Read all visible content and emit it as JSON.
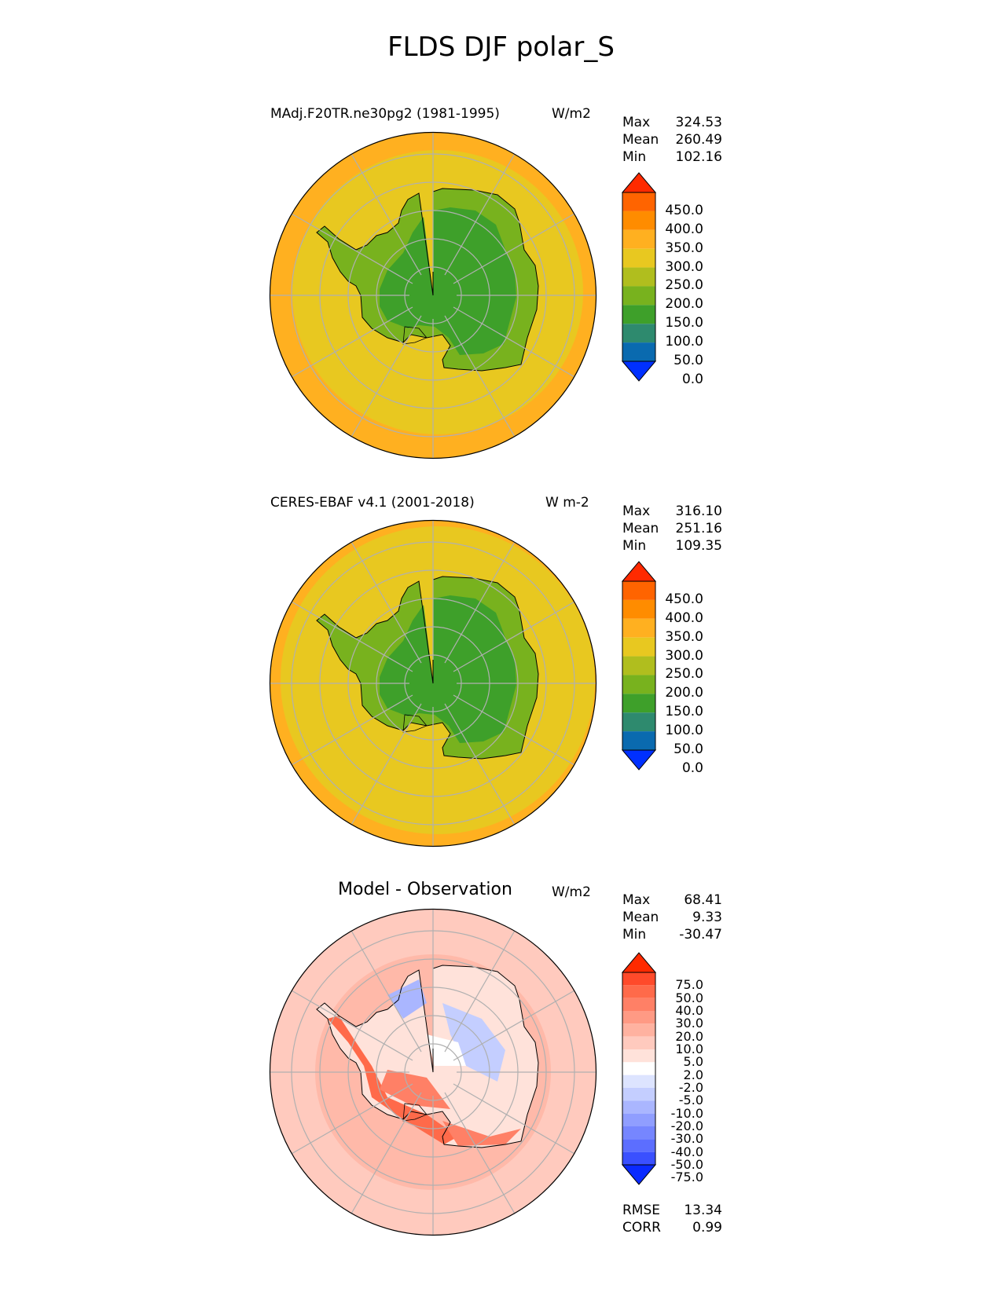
{
  "figure_title": "FLDS DJF polar_S",
  "panels": [
    {
      "title": "MAdj.F20TR.ne30pg2 (1981-1995)",
      "units": "W/m2",
      "stats": [
        {
          "label": "Max",
          "value": "324.53"
        },
        {
          "label": "Mean",
          "value": "260.49"
        },
        {
          "label": "Min",
          "value": "102.16"
        }
      ],
      "colorbar": {
        "labels": [
          "450.0",
          "400.0",
          "350.0",
          "300.0",
          "250.0",
          "200.0",
          "150.0",
          "100.0",
          "50.0",
          "0.0"
        ],
        "colors": [
          "#ff2a00",
          "#ff6400",
          "#ff8c00",
          "#ffb020",
          "#e8c820",
          "#b0be1e",
          "#78b21e",
          "#3ea02a",
          "#2e8a6e",
          "#0a6aaf",
          "#0030ff"
        ]
      }
    },
    {
      "title": "CERES-EBAF v4.1 (2001-2018)",
      "units": "W m-2",
      "stats": [
        {
          "label": "Max",
          "value": "316.10"
        },
        {
          "label": "Mean",
          "value": "251.16"
        },
        {
          "label": "Min",
          "value": "109.35"
        }
      ],
      "colorbar": {
        "labels": [
          "450.0",
          "400.0",
          "350.0",
          "300.0",
          "250.0",
          "200.0",
          "150.0",
          "100.0",
          "50.0",
          "0.0"
        ],
        "colors": [
          "#ff2a00",
          "#ff6400",
          "#ff8c00",
          "#ffb020",
          "#e8c820",
          "#b0be1e",
          "#78b21e",
          "#3ea02a",
          "#2e8a6e",
          "#0a6aaf",
          "#0030ff"
        ]
      }
    },
    {
      "title": "Model - Observation",
      "units": "W/m2",
      "stats": [
        {
          "label": "Max",
          "value": "68.41"
        },
        {
          "label": "Mean",
          "value": "9.33"
        },
        {
          "label": "Min",
          "value": "-30.47"
        }
      ],
      "colorbar": {
        "labels": [
          "75.0",
          "50.0",
          "40.0",
          "30.0",
          "20.0",
          "10.0",
          "5.0",
          "2.0",
          "-2.0",
          "-5.0",
          "-10.0",
          "-20.0",
          "-30.0",
          "-40.0",
          "-50.0",
          "-75.0"
        ],
        "colors": [
          "#ff2a00",
          "#ff4a2a",
          "#ff6a4a",
          "#ff8066",
          "#ff9a84",
          "#ffb2a0",
          "#ffcabe",
          "#ffe2da",
          "#ffffff",
          "#dde4ff",
          "#c4ceff",
          "#aab6ff",
          "#909eff",
          "#7686ff",
          "#5c6eff",
          "#3a50ff",
          "#0a2aff"
        ]
      },
      "metrics": [
        {
          "label": "RMSE",
          "value": "13.34"
        },
        {
          "label": "CORR",
          "value": "0.99"
        }
      ]
    }
  ],
  "map": {
    "projection": "south polar stereographic",
    "ocean_color_model": "#e8c820",
    "outer_ring_color": "#ffb020",
    "land_interior_color": "#3ea02a",
    "land_edge_color": "#78b21e",
    "grid_color": "#b0b0b0"
  }
}
